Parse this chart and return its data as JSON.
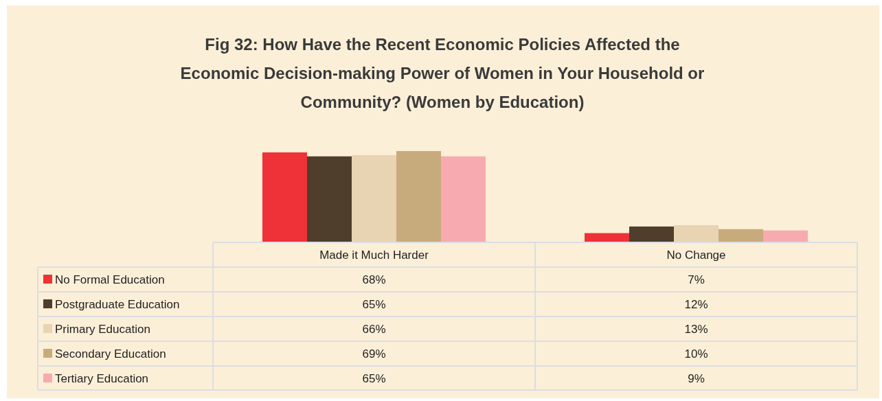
{
  "chart_data": {
    "type": "bar",
    "title": "Fig 32: How Have the Recent Economic Policies Affected the Economic Decision-making Power of Women in Your Household or Community? (Women by Education)",
    "categories": [
      "Made it Much Harder",
      "No Change"
    ],
    "series": [
      {
        "name": "No Formal Education",
        "color": "#ee3237",
        "values": [
          68,
          7
        ],
        "value_labels": [
          "68%",
          "7%"
        ]
      },
      {
        "name": "Postgraduate Education",
        "color": "#4f3e2c",
        "values": [
          65,
          12
        ],
        "value_labels": [
          "65%",
          "12%"
        ]
      },
      {
        "name": "Primary Education",
        "color": "#e8d4b2",
        "values": [
          66,
          13
        ],
        "value_labels": [
          "66%",
          "13%"
        ]
      },
      {
        "name": "Secondary Education",
        "color": "#c8ab7c",
        "values": [
          69,
          10
        ],
        "value_labels": [
          "69%",
          "10%"
        ]
      },
      {
        "name": "Tertiary Education",
        "color": "#f7abb0",
        "values": [
          65,
          9
        ],
        "value_labels": [
          "65%",
          "9%"
        ]
      }
    ],
    "legend": "bottom left"
  }
}
